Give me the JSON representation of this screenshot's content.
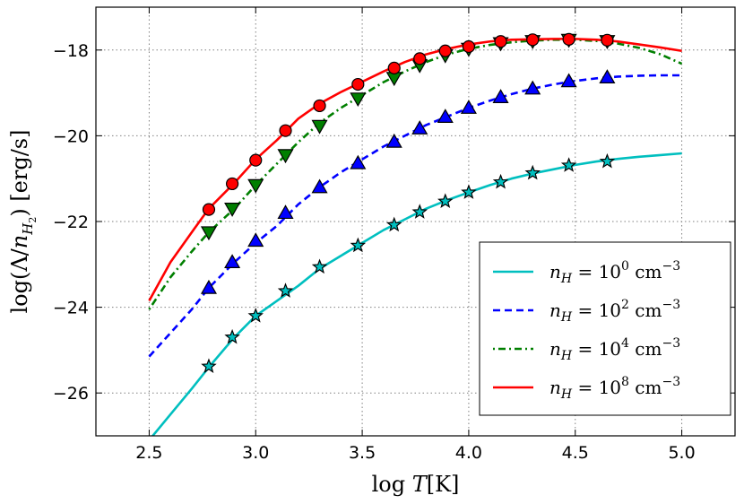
{
  "chart_data": {
    "type": "line",
    "xlabel": "log T[K]",
    "ylabel": "log(Λ/n_H2) [erg/s]",
    "xlim": [
      2.25,
      5.25
    ],
    "ylim": [
      -27,
      -17
    ],
    "xticks": [
      2.5,
      3.0,
      3.5,
      4.0,
      4.5,
      5.0
    ],
    "xtick_labels": [
      "2.5",
      "3.0",
      "3.5",
      "4.0",
      "4.5",
      "5.0"
    ],
    "yticks": [
      -26,
      -24,
      -22,
      -20,
      -18
    ],
    "ytick_labels": [
      "−26",
      "−24",
      "−22",
      "−20",
      "−18"
    ],
    "grid": true,
    "legend_position": "bottom-right",
    "series": [
      {
        "name": "n_H = 10^0 cm^-3",
        "legend": {
          "pre": "n",
          "sub": "H",
          "mid": " = 10",
          "sup": "0",
          "unit": " cm",
          "unit_sup": "−3"
        },
        "color": "#00bfbf",
        "line_style": "solid",
        "marker": "star",
        "marker_color": "#00bfbf",
        "line": {
          "x": [
            2.5,
            2.6,
            2.7,
            2.78,
            2.9,
            3.0,
            3.1,
            3.2,
            3.3,
            3.4,
            3.5,
            3.6,
            3.7,
            3.8,
            3.9,
            4.0,
            4.1,
            4.2,
            4.3,
            4.4,
            4.5,
            4.6,
            4.7,
            4.8,
            4.9,
            5.0
          ],
          "y": [
            -27.1,
            -26.5,
            -25.9,
            -25.4,
            -24.7,
            -24.2,
            -23.85,
            -23.5,
            -23.1,
            -22.8,
            -22.5,
            -22.2,
            -21.95,
            -21.7,
            -21.5,
            -21.32,
            -21.15,
            -21.0,
            -20.88,
            -20.78,
            -20.68,
            -20.6,
            -20.54,
            -20.49,
            -20.45,
            -20.41
          ]
        },
        "markers": {
          "x": [
            2.78,
            2.89,
            3.0,
            3.14,
            3.3,
            3.48,
            3.65,
            3.77,
            3.89,
            4.0,
            4.15,
            4.3,
            4.47,
            4.65
          ],
          "y": [
            -25.38,
            -24.7,
            -24.2,
            -23.62,
            -23.06,
            -22.56,
            -22.08,
            -21.78,
            -21.53,
            -21.32,
            -21.08,
            -20.87,
            -20.69,
            -20.6
          ]
        }
      },
      {
        "name": "n_H = 10^2 cm^-3",
        "legend": {
          "pre": "n",
          "sub": "H",
          "mid": " = 10",
          "sup": "2",
          "unit": " cm",
          "unit_sup": "−3"
        },
        "color": "#0000ff",
        "line_style": "dashed",
        "marker": "triangle-up",
        "marker_color": "#0000ff",
        "line": {
          "x": [
            2.5,
            2.6,
            2.7,
            2.78,
            2.9,
            3.0,
            3.1,
            3.2,
            3.3,
            3.4,
            3.5,
            3.6,
            3.7,
            3.8,
            3.9,
            4.0,
            4.1,
            4.2,
            4.3,
            4.4,
            4.5,
            4.6,
            4.7,
            4.8,
            4.9,
            5.0
          ],
          "y": [
            -25.15,
            -24.6,
            -24.05,
            -23.55,
            -22.95,
            -22.5,
            -22.1,
            -21.6,
            -21.2,
            -20.85,
            -20.55,
            -20.25,
            -20.0,
            -19.75,
            -19.55,
            -19.35,
            -19.18,
            -19.03,
            -18.9,
            -18.8,
            -18.72,
            -18.66,
            -18.62,
            -18.6,
            -18.59,
            -18.59
          ]
        },
        "markers": {
          "x": [
            2.78,
            2.89,
            3.0,
            3.14,
            3.3,
            3.48,
            3.65,
            3.77,
            3.89,
            4.0,
            4.15,
            4.3,
            4.47,
            4.65
          ],
          "y": [
            -23.55,
            -22.95,
            -22.45,
            -21.8,
            -21.2,
            -20.64,
            -20.14,
            -19.83,
            -19.56,
            -19.35,
            -19.1,
            -18.9,
            -18.73,
            -18.64
          ]
        }
      },
      {
        "name": "n_H = 10^4 cm^-3",
        "legend": {
          "pre": "n",
          "sub": "H",
          "mid": " = 10",
          "sup": "4",
          "unit": " cm",
          "unit_sup": "−3"
        },
        "color": "#007f00",
        "line_style": "dashdot",
        "marker": "triangle-down",
        "marker_color": "#007f00",
        "line": {
          "x": [
            2.5,
            2.6,
            2.7,
            2.78,
            2.9,
            3.0,
            3.1,
            3.2,
            3.3,
            3.4,
            3.5,
            3.6,
            3.7,
            3.8,
            3.9,
            4.0,
            4.1,
            4.2,
            4.3,
            4.4,
            4.5,
            4.6,
            4.7,
            4.8,
            4.9,
            5.0
          ],
          "y": [
            -24.05,
            -23.3,
            -22.7,
            -22.25,
            -21.7,
            -21.15,
            -20.65,
            -20.15,
            -19.7,
            -19.35,
            -19.05,
            -18.75,
            -18.5,
            -18.28,
            -18.1,
            -17.97,
            -17.88,
            -17.82,
            -17.78,
            -17.76,
            -17.76,
            -17.79,
            -17.85,
            -17.95,
            -18.1,
            -18.32
          ]
        },
        "markers": {
          "x": [
            2.78,
            2.89,
            3.0,
            3.14,
            3.3,
            3.48,
            3.65,
            3.77,
            3.89,
            4.0,
            4.15,
            4.3,
            4.47,
            4.65
          ],
          "y": [
            -22.25,
            -21.7,
            -21.15,
            -20.45,
            -19.77,
            -19.13,
            -18.65,
            -18.35,
            -18.12,
            -17.97,
            -17.84,
            -17.79,
            -17.76,
            -17.79
          ]
        }
      },
      {
        "name": "n_H = 10^8 cm^-3",
        "legend": {
          "pre": "n",
          "sub": "H",
          "mid": " = 10",
          "sup": "8",
          "unit": " cm",
          "unit_sup": "−3"
        },
        "color": "#ff0000",
        "line_style": "solid",
        "marker": "circle",
        "marker_color": "#ff0000",
        "line": {
          "x": [
            2.5,
            2.6,
            2.7,
            2.78,
            2.9,
            3.0,
            3.1,
            3.2,
            3.3,
            3.4,
            3.5,
            3.6,
            3.7,
            3.8,
            3.9,
            4.0,
            4.1,
            4.2,
            4.3,
            4.4,
            4.5,
            4.6,
            4.7,
            4.8,
            4.9,
            5.0
          ],
          "y": [
            -23.85,
            -22.95,
            -22.25,
            -21.7,
            -21.1,
            -20.55,
            -20.1,
            -19.6,
            -19.25,
            -18.98,
            -18.74,
            -18.5,
            -18.28,
            -18.1,
            -17.97,
            -17.87,
            -17.8,
            -17.76,
            -17.75,
            -17.74,
            -17.74,
            -17.76,
            -17.8,
            -17.87,
            -17.94,
            -18.02
          ]
        },
        "markers": {
          "x": [
            2.78,
            2.89,
            3.0,
            3.14,
            3.3,
            3.48,
            3.65,
            3.77,
            3.89,
            4.0,
            4.15,
            4.3,
            4.47,
            4.65
          ],
          "y": [
            -21.72,
            -21.12,
            -20.57,
            -19.88,
            -19.3,
            -18.8,
            -18.42,
            -18.2,
            -18.02,
            -17.92,
            -17.8,
            -17.76,
            -17.75,
            -17.77
          ]
        }
      }
    ]
  }
}
